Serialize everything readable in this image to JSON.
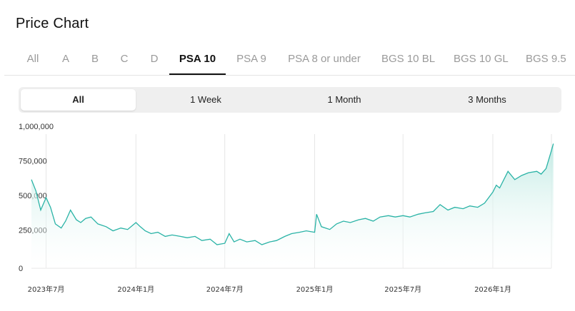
{
  "page": {
    "title": "Price Chart"
  },
  "grade_tabs": [
    {
      "label": "All",
      "active": false
    },
    {
      "label": "A",
      "active": false
    },
    {
      "label": "B",
      "active": false
    },
    {
      "label": "C",
      "active": false
    },
    {
      "label": "D",
      "active": false
    },
    {
      "label": "PSA 10",
      "active": true
    },
    {
      "label": "PSA 9",
      "active": false
    },
    {
      "label": "PSA 8 or under",
      "active": false
    },
    {
      "label": "BGS 10 BL",
      "active": false
    },
    {
      "label": "BGS 10 GL",
      "active": false
    },
    {
      "label": "BGS 9.5",
      "active": false
    }
  ],
  "range_options": [
    {
      "label": "All",
      "active": true
    },
    {
      "label": "1 Week",
      "active": false
    },
    {
      "label": "1 Month",
      "active": false
    },
    {
      "label": "3 Months",
      "active": false
    }
  ],
  "colors": {
    "line": "#2ab3a6",
    "fill_top": "#bfeae3",
    "grid": "#e6e6e6",
    "active_text": "#111111",
    "inactive_text": "#9a9a9a"
  },
  "chart_data": {
    "type": "area",
    "ylim": [
      0,
      1000000
    ],
    "y_ticks": [
      {
        "value": 0,
        "label": "0"
      },
      {
        "value": 250000,
        "label": "250,000"
      },
      {
        "value": 500000,
        "label": "500,000"
      },
      {
        "value": 750000,
        "label": "750,000"
      },
      {
        "value": 1000000,
        "label": "1,000,000"
      }
    ],
    "x_ticks": [
      "2023年7月",
      "2024年1月",
      "2024年7月",
      "2025年1月",
      "2025年7月",
      "2026年1月"
    ],
    "x_range": [
      "2023-06",
      "2026-05"
    ],
    "grid": true,
    "series": [
      {
        "x": [
          "2023-06-01",
          "2023-06-10",
          "2023-06-20",
          "2023-07-01",
          "2023-07-10",
          "2023-07-20",
          "2023-08-01",
          "2023-08-10",
          "2023-08-20",
          "2023-09-01",
          "2023-09-10",
          "2023-09-20",
          "2023-10-01",
          "2023-10-15",
          "2023-11-01",
          "2023-11-15",
          "2023-12-01",
          "2023-12-15",
          "2024-01-01",
          "2024-01-10",
          "2024-01-20",
          "2024-02-01",
          "2024-02-15",
          "2024-03-01",
          "2024-03-15",
          "2024-04-01",
          "2024-04-15",
          "2024-05-01",
          "2024-05-15",
          "2024-06-01",
          "2024-06-15",
          "2024-07-01",
          "2024-07-10",
          "2024-07-20",
          "2024-08-01",
          "2024-08-15",
          "2024-09-01",
          "2024-09-15",
          "2024-10-01",
          "2024-10-15",
          "2024-11-01",
          "2024-11-15",
          "2024-12-01",
          "2024-12-15",
          "2025-01-01",
          "2025-01-05",
          "2025-01-15",
          "2025-02-01",
          "2025-02-15",
          "2025-03-01",
          "2025-03-15",
          "2025-04-01",
          "2025-04-15",
          "2025-05-01",
          "2025-05-15",
          "2025-06-01",
          "2025-06-15",
          "2025-07-01",
          "2025-07-15",
          "2025-08-01",
          "2025-08-15",
          "2025-09-01",
          "2025-09-15",
          "2025-10-01",
          "2025-10-15",
          "2025-11-01",
          "2025-11-15",
          "2025-12-01",
          "2025-12-15",
          "2026-01-01",
          "2026-01-08",
          "2026-01-15",
          "2026-02-01",
          "2026-02-15",
          "2026-03-01",
          "2026-03-15",
          "2026-04-01",
          "2026-04-10",
          "2026-04-20",
          "2026-05-01",
          "2026-05-05"
        ],
        "y": [
          640000,
          560000,
          420000,
          510000,
          440000,
          320000,
          290000,
          340000,
          420000,
          350000,
          330000,
          360000,
          370000,
          320000,
          300000,
          270000,
          290000,
          280000,
          330000,
          300000,
          270000,
          250000,
          260000,
          230000,
          240000,
          230000,
          220000,
          230000,
          200000,
          210000,
          170000,
          180000,
          250000,
          190000,
          210000,
          190000,
          200000,
          170000,
          190000,
          200000,
          230000,
          250000,
          260000,
          270000,
          260000,
          390000,
          300000,
          280000,
          320000,
          340000,
          330000,
          350000,
          360000,
          340000,
          370000,
          380000,
          370000,
          380000,
          370000,
          390000,
          400000,
          410000,
          460000,
          420000,
          440000,
          430000,
          450000,
          440000,
          470000,
          550000,
          600000,
          580000,
          700000,
          640000,
          670000,
          690000,
          700000,
          680000,
          720000,
          850000,
          900000
        ]
      }
    ]
  }
}
